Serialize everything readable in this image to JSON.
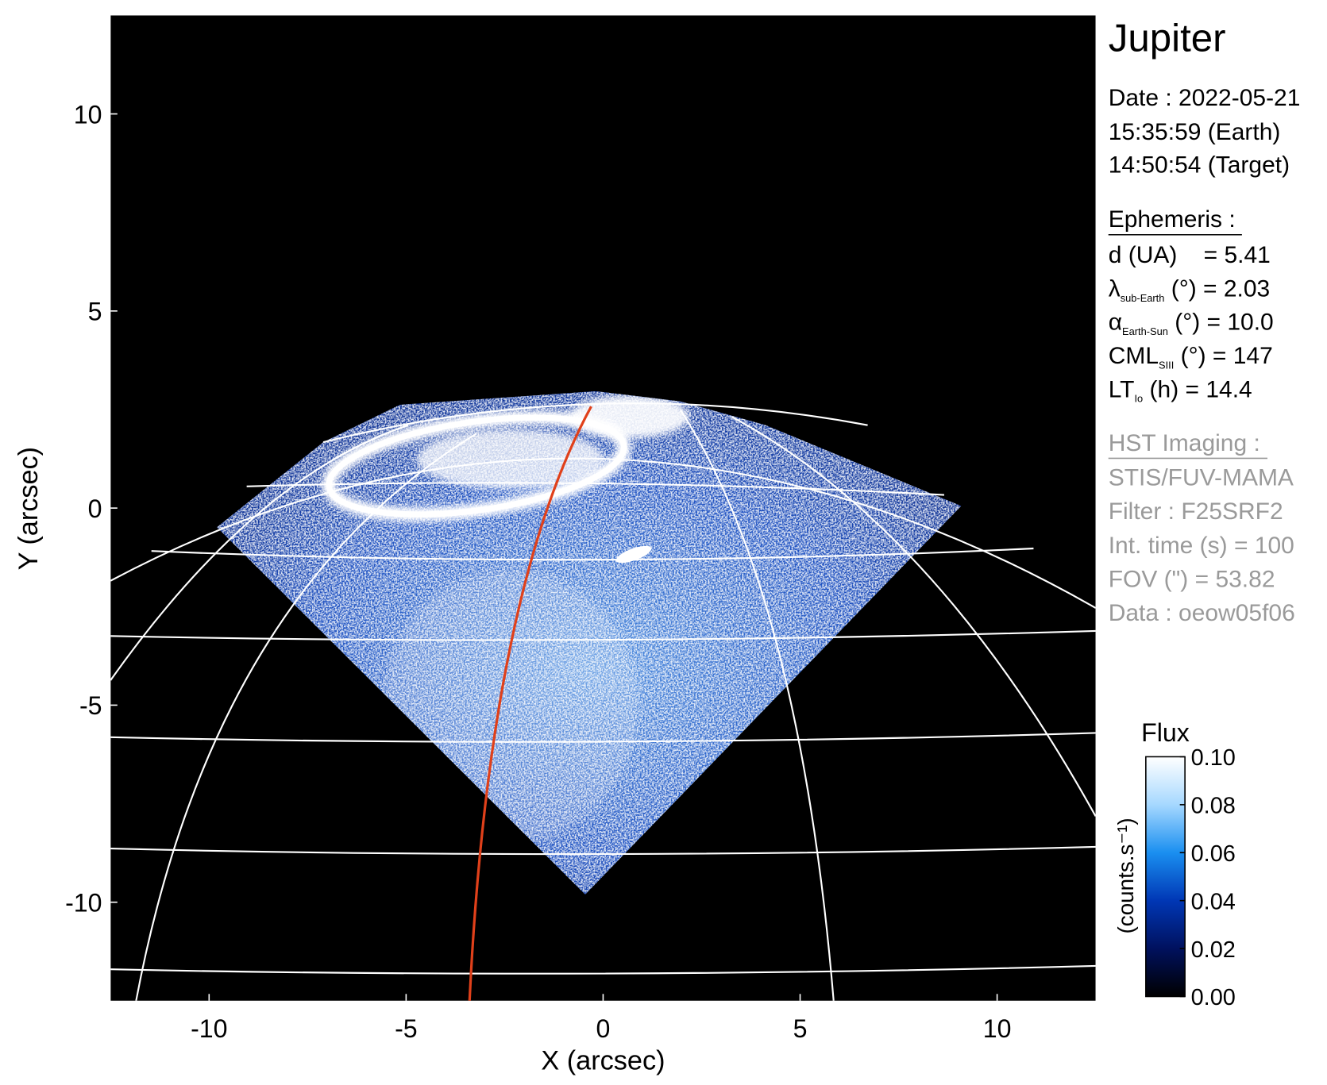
{
  "chart_data": {
    "type": "image",
    "title": "Jupiter",
    "xlabel": "X (arcsec)",
    "ylabel": "Y (arcsec)",
    "xlim": [
      -12.5,
      12.5
    ],
    "ylim": [
      -12.5,
      12.5
    ],
    "xticks": [
      -10,
      -5,
      0,
      5,
      10
    ],
    "yticks": [
      -10,
      -5,
      0,
      5,
      10
    ],
    "colorbar": {
      "title": "Flux",
      "label": "(counts.s⁻¹)",
      "lim": [
        0,
        0.1
      ],
      "ticks": [
        {
          "value": 0,
          "label": "0.00"
        },
        {
          "value": 0.02,
          "label": "0.02"
        },
        {
          "value": 0.04,
          "label": "0.04"
        },
        {
          "value": 0.06,
          "label": "0.06"
        },
        {
          "value": 0.08,
          "label": "0.08"
        },
        {
          "value": 0.1,
          "label": "0.10"
        }
      ],
      "colors": [
        "#000000",
        "#00115e",
        "#0037b5",
        "#1a8ff0",
        "#a6d8ff",
        "#ffffff"
      ]
    },
    "info": {
      "date": "Date : 2022-05-21",
      "earth_time": "15:35:59 (Earth)",
      "target_time": "14:50:54 (Target)"
    },
    "ephemeris": {
      "title": "Ephemeris :",
      "rows": [
        {
          "main": "d (UA)    = 5.41"
        },
        {
          "main": "λ",
          "sub": "sub-Earth",
          "rest": " (°) = 2.03"
        },
        {
          "main": "α",
          "sub": "Earth-Sun",
          "rest": " (°) = 10.0"
        },
        {
          "main": "CML",
          "sub": "SIII",
          "rest": " (°) = 147"
        },
        {
          "main": "LT",
          "sub": "Io",
          "rest": " (h) = 14.4"
        }
      ]
    },
    "imaging": {
      "title": "HST Imaging :",
      "lines": [
        "STIS/FUV-MAMA",
        "Filter : F25SRF2",
        "Int. time (s) = 100",
        "FOV (\") = 53.82",
        "Data : oeow05f06"
      ]
    }
  }
}
